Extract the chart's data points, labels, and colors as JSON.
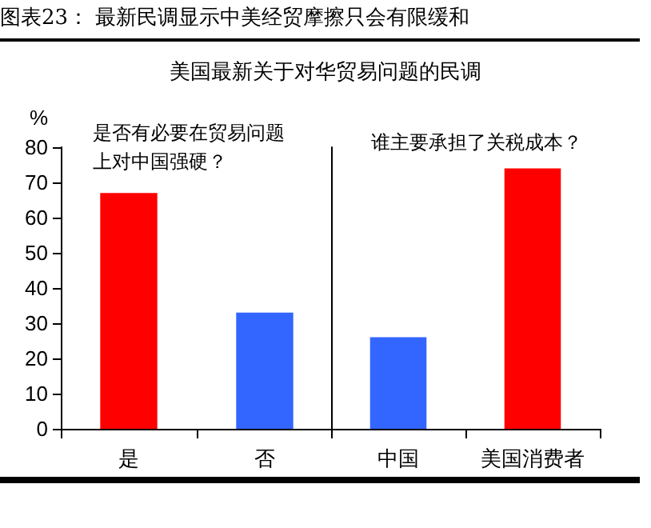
{
  "chart_data": [
    {
      "type": "bar",
      "title": "图表23：  最新民调显示中美经贸摩擦只会有限缓和",
      "subtitle": "美国最新关于对华贸易问题的民调",
      "ylabel": "%",
      "categories": [
        "是",
        "否"
      ],
      "values": [
        67,
        33
      ],
      "colors": [
        "#ff0000",
        "#3366ff"
      ],
      "ylim": [
        0,
        80
      ],
      "yticks": [
        0,
        10,
        20,
        30,
        40,
        50,
        60,
        70,
        80
      ],
      "grid": false,
      "annotations": [
        "是否有必要在贸易问题上对中国强硬？"
      ]
    },
    {
      "type": "bar",
      "categories": [
        "中国",
        "美国消费者"
      ],
      "values": [
        26,
        74
      ],
      "colors": [
        "#3366ff",
        "#ff0000"
      ],
      "ylim": [
        0,
        80
      ],
      "tick_labels": "x",
      "grid": false,
      "annotations": [
        "谁主要承担了关税成本？"
      ]
    }
  ]
}
